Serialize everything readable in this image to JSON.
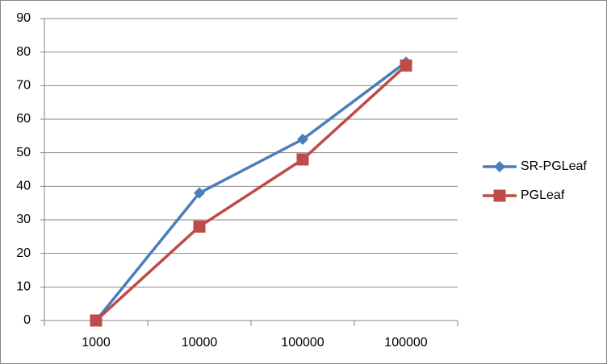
{
  "chart_data": {
    "type": "line",
    "categories": [
      "1000",
      "10000",
      "100000",
      "100000"
    ],
    "series": [
      {
        "name": "SR-PGLeaf",
        "color": "#4a7ebb",
        "marker": "diamond",
        "values": [
          0,
          38,
          54,
          77
        ]
      },
      {
        "name": "PGLeaf",
        "color": "#be4b48",
        "marker": "square",
        "values": [
          0,
          28,
          48,
          76
        ]
      }
    ],
    "ylim": [
      0,
      90
    ],
    "yticks": [
      0,
      10,
      20,
      30,
      40,
      50,
      60,
      70,
      80,
      90
    ],
    "grid": true,
    "legend": "right"
  }
}
